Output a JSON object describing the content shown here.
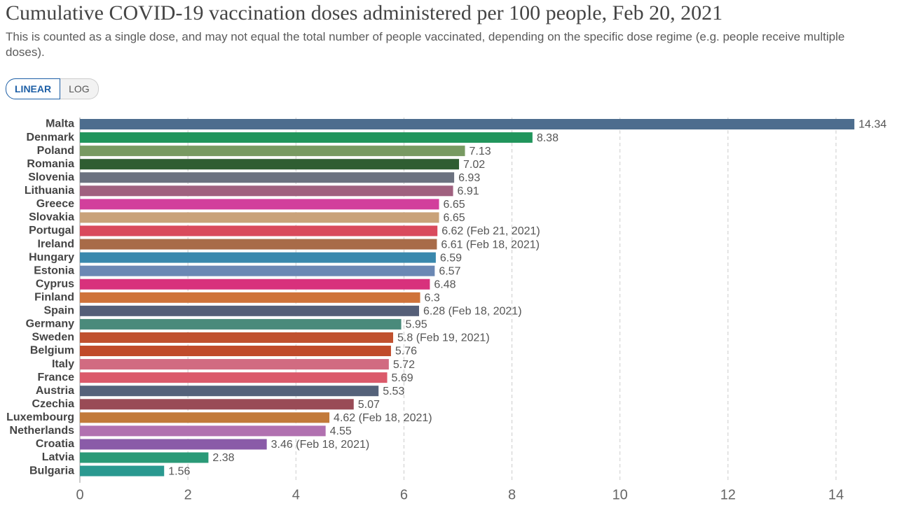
{
  "chart_data": {
    "type": "hbar",
    "title": "Cumulative COVID-19 vaccination doses administered per 100 people, Feb 20, 2021",
    "subtitle": "This is counted as a single dose, and may not equal the total number of people vaccinated, depending on the specific dose regime (e.g. people receive multiple doses).",
    "scale_options": [
      "LINEAR",
      "LOG"
    ],
    "log_scale": false,
    "grid": true,
    "categories": [
      "Malta",
      "Denmark",
      "Poland",
      "Romania",
      "Slovenia",
      "Lithuania",
      "Greece",
      "Slovakia",
      "Portugal",
      "Ireland",
      "Hungary",
      "Estonia",
      "Cyprus",
      "Finland",
      "Spain",
      "Germany",
      "Sweden",
      "Belgium",
      "Italy",
      "France",
      "Austria",
      "Czechia",
      "Luxembourg",
      "Netherlands",
      "Croatia",
      "Latvia",
      "Bulgaria"
    ],
    "values": [
      14.34,
      8.38,
      7.13,
      7.02,
      6.93,
      6.91,
      6.65,
      6.65,
      6.62,
      6.61,
      6.59,
      6.57,
      6.48,
      6.3,
      6.28,
      5.95,
      5.8,
      5.76,
      5.72,
      5.69,
      5.53,
      5.07,
      4.62,
      4.55,
      3.46,
      2.38,
      1.56
    ],
    "value_labels": [
      "14.34",
      "8.38",
      "7.13",
      "7.02",
      "6.93",
      "6.91",
      "6.65",
      "6.65",
      "6.62 (Feb 21, 2021)",
      "6.61 (Feb 18, 2021)",
      "6.59",
      "6.57",
      "6.48",
      "6.3",
      "6.28 (Feb 18, 2021)",
      "5.95",
      "5.8 (Feb 19, 2021)",
      "5.76",
      "5.72",
      "5.69",
      "5.53",
      "5.07",
      "4.62 (Feb 18, 2021)",
      "4.55",
      "3.46 (Feb 18, 2021)",
      "2.38",
      "1.56"
    ],
    "colors": [
      "#4d6d8e",
      "#21955c",
      "#789a62",
      "#2f5d32",
      "#6c7280",
      "#a0617f",
      "#d23f9c",
      "#c9a27a",
      "#d94a5d",
      "#a86b48",
      "#3a88ad",
      "#6b88b4",
      "#d8317c",
      "#cf733a",
      "#555f78",
      "#4a8a7b",
      "#c0512f",
      "#c04b2a",
      "#d16b81",
      "#db5a6b",
      "#55627a",
      "#994b56",
      "#c27a3a",
      "#b171b0",
      "#8a5ba8",
      "#2a9a77",
      "#2a9990"
    ],
    "xlim": [
      0,
      14.5
    ],
    "xticks": [
      0,
      2,
      4,
      6,
      8,
      10,
      12,
      14
    ]
  }
}
